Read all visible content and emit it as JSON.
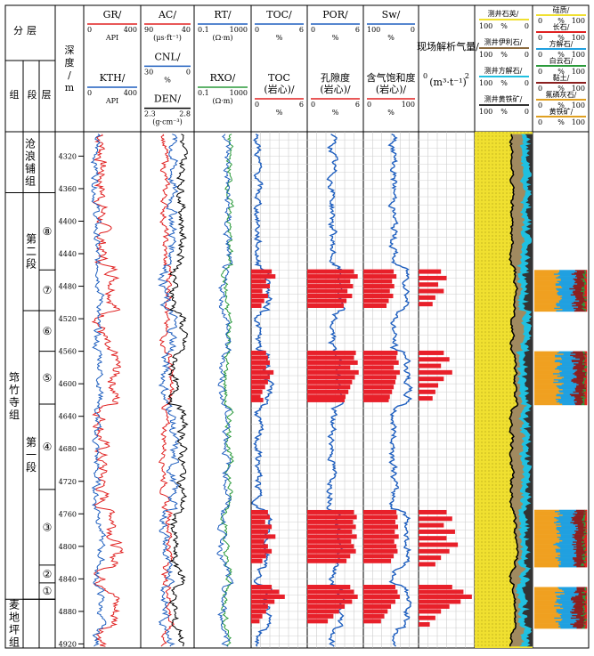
{
  "header": {
    "strat_title": "分层",
    "group_label": "组",
    "section_label": "段",
    "layer_label": "层",
    "depth_title": "深度/m",
    "analysis_title": "现场解析气量/",
    "analysis_unit": "(m³·t⁻¹)",
    "analysis_scale": [
      "0",
      "2"
    ]
  },
  "tracks": [
    {
      "id": "gr",
      "curves": [
        {
          "label": "GR/",
          "unit": "API",
          "min": "0",
          "max": "400",
          "color": "#e02020"
        },
        {
          "label": "KTH/",
          "unit": "API",
          "min": "0",
          "max": "400",
          "color": "#1f5fbf"
        }
      ]
    },
    {
      "id": "ac",
      "curves": [
        {
          "label": "AC/",
          "unit": "(μs·ft⁻¹)",
          "min": "90",
          "max": "40",
          "color": "#e02020"
        },
        {
          "label": "CNL/",
          "unit": "%",
          "min": "30",
          "max": "0",
          "color": "#1f5fbf"
        },
        {
          "label": "DEN/",
          "unit": "(g·cm⁻³)",
          "min": "2.3",
          "max": "2.8",
          "color": "#000000"
        }
      ]
    },
    {
      "id": "rt",
      "curves": [
        {
          "label": "RT/",
          "unit": "(Ω·m)",
          "min": "0.1",
          "max": "1000",
          "color": "#1f5fbf"
        },
        {
          "label": "RXO/",
          "unit": "(Ω·m)",
          "min": "0.1",
          "max": "1000",
          "color": "#2a9a3a"
        }
      ]
    },
    {
      "id": "toc",
      "curves": [
        {
          "label": "TOC/",
          "unit": "%",
          "min": "0",
          "max": "6",
          "color": "#1f5fbf"
        },
        {
          "label": "TOC (岩心)/",
          "unit": "%",
          "min": "0",
          "max": "6",
          "color": "#e02020"
        }
      ]
    },
    {
      "id": "por",
      "curves": [
        {
          "label": "POR/",
          "unit": "%",
          "min": "0",
          "max": "6",
          "color": "#1f5fbf"
        },
        {
          "label": "孔隙度 (岩心)/",
          "unit": "%",
          "min": "0",
          "max": "6",
          "color": "#e02020"
        }
      ]
    },
    {
      "id": "sw",
      "curves": [
        {
          "label": "Sw/",
          "unit": "%",
          "min": "100",
          "max": "0",
          "color": "#1f5fbf"
        },
        {
          "label": "含气饱和度 (岩心)/",
          "unit": "%",
          "min": "0",
          "max": "100",
          "color": "#e02020"
        }
      ]
    }
  ],
  "mineral_legend": [
    {
      "label": "测井石英/",
      "min": "100",
      "max": "0",
      "unit": "%",
      "color": "#f0e030"
    },
    {
      "label": "测井伊利石/",
      "min": "100",
      "max": "0",
      "unit": "%",
      "color": "#8b6b40"
    },
    {
      "label": "测井方解石/",
      "min": "100",
      "max": "0",
      "unit": "%",
      "color": "#20c0e0"
    },
    {
      "label": "测井黄铁矿/",
      "min": "100",
      "max": "0",
      "unit": "%",
      "color": "#333333"
    }
  ],
  "core_legend": [
    {
      "label": "硅质/",
      "unit": "%",
      "color": "#f0e030"
    },
    {
      "label": "长石/",
      "unit": "%",
      "color": "#e02020"
    },
    {
      "label": "方解石/",
      "unit": "%",
      "color": "#20a0e0"
    },
    {
      "label": "白云石/",
      "unit": "%",
      "color": "#2a9a3a"
    },
    {
      "label": "黏土/",
      "unit": "%",
      "color": "#8b2020"
    },
    {
      "label": "氟磷灰石/",
      "unit": "%",
      "color": "#e0a020"
    },
    {
      "label": "黄铁矿/",
      "unit": "%",
      "color": "#e0a020"
    }
  ],
  "core_legend_scale": [
    "0",
    "100"
  ],
  "formations": [
    {
      "name": "沧浪铺组",
      "top": 4290,
      "bottom": 4365
    },
    {
      "name": "筇竹寺组",
      "top": 4365,
      "bottom": 4865
    },
    {
      "name": "麦地坪组",
      "top": 4865,
      "bottom": 4925
    }
  ],
  "sections": [
    {
      "name": "第二段",
      "top": 4365,
      "bottom": 4510
    },
    {
      "name": "第一段",
      "top": 4510,
      "bottom": 4865
    }
  ],
  "layers": [
    {
      "name": "⑧",
      "top": 4365,
      "bottom": 4460
    },
    {
      "name": "⑦",
      "top": 4460,
      "bottom": 4510
    },
    {
      "name": "⑥",
      "top": 4510,
      "bottom": 4560
    },
    {
      "name": "⑤",
      "top": 4560,
      "bottom": 4625
    },
    {
      "name": "④",
      "top": 4625,
      "bottom": 4730
    },
    {
      "name": "③",
      "top": 4730,
      "bottom": 4823
    },
    {
      "name": "②",
      "top": 4823,
      "bottom": 4845
    },
    {
      "name": "①",
      "top": 4845,
      "bottom": 4865
    }
  ],
  "depth_ticks": [
    4320,
    4360,
    4400,
    4440,
    4480,
    4520,
    4560,
    4600,
    4640,
    4680,
    4720,
    4760,
    4800,
    4840,
    4880,
    4920
  ],
  "chart_data": {
    "type": "well-log",
    "depth_range": [
      4290,
      4925
    ],
    "depth_unit": "m",
    "grid": true,
    "shale_intervals": [
      {
        "top": 4455,
        "bottom": 4510
      },
      {
        "top": 4560,
        "bottom": 4625
      },
      {
        "top": 4755,
        "bottom": 4825
      },
      {
        "top": 4847,
        "bottom": 4900
      }
    ],
    "core_columns": [
      {
        "top": 4460,
        "bottom": 4510
      },
      {
        "top": 4560,
        "bottom": 4625
      },
      {
        "top": 4755,
        "bottom": 4825
      },
      {
        "top": 4850,
        "bottom": 4900
      }
    ],
    "core_points": {
      "toc": [
        [
          4462,
          2.2
        ],
        [
          4468,
          2.6
        ],
        [
          4474,
          1.6
        ],
        [
          4480,
          2.0
        ],
        [
          4486,
          1.2
        ],
        [
          4492,
          1.8
        ],
        [
          4498,
          1.4
        ],
        [
          4504,
          1.1
        ],
        [
          4562,
          1.6
        ],
        [
          4568,
          1.8
        ],
        [
          4574,
          2.0
        ],
        [
          4580,
          1.6
        ],
        [
          4586,
          2.4
        ],
        [
          4592,
          2.0
        ],
        [
          4598,
          1.8
        ],
        [
          4604,
          1.5
        ],
        [
          4610,
          1.2
        ],
        [
          4616,
          1.0
        ],
        [
          4620,
          1.3
        ],
        [
          4758,
          1.8
        ],
        [
          4764,
          2.0
        ],
        [
          4770,
          1.5
        ],
        [
          4776,
          2.2
        ],
        [
          4782,
          1.8
        ],
        [
          4788,
          2.6
        ],
        [
          4794,
          1.4
        ],
        [
          4800,
          1.8
        ],
        [
          4806,
          2.2
        ],
        [
          4812,
          1.6
        ],
        [
          4818,
          1.2
        ],
        [
          4850,
          2.2
        ],
        [
          4856,
          3.0
        ],
        [
          4862,
          3.6
        ],
        [
          4868,
          2.5
        ],
        [
          4874,
          1.8
        ],
        [
          4880,
          1.6
        ],
        [
          4886,
          1.2
        ],
        [
          4892,
          0.9
        ]
      ],
      "por": [
        [
          4462,
          5.0
        ],
        [
          4468,
          5.4
        ],
        [
          4474,
          4.6
        ],
        [
          4480,
          4.9
        ],
        [
          4486,
          4.3
        ],
        [
          4492,
          4.8
        ],
        [
          4498,
          4.2
        ],
        [
          4504,
          3.9
        ],
        [
          4562,
          5.2
        ],
        [
          4568,
          5.0
        ],
        [
          4574,
          5.4
        ],
        [
          4580,
          4.6
        ],
        [
          4586,
          5.5
        ],
        [
          4592,
          5.1
        ],
        [
          4598,
          4.8
        ],
        [
          4604,
          4.6
        ],
        [
          4610,
          4.4
        ],
        [
          4616,
          4.1
        ],
        [
          4620,
          4.0
        ],
        [
          4758,
          5.0
        ],
        [
          4764,
          5.3
        ],
        [
          4770,
          4.9
        ],
        [
          4776,
          5.2
        ],
        [
          4782,
          4.8
        ],
        [
          4788,
          5.3
        ],
        [
          4794,
          4.7
        ],
        [
          4800,
          5.0
        ],
        [
          4806,
          5.2
        ],
        [
          4812,
          4.6
        ],
        [
          4818,
          4.2
        ],
        [
          4850,
          4.6
        ],
        [
          4856,
          5.0
        ],
        [
          4862,
          5.4
        ],
        [
          4868,
          4.8
        ],
        [
          4874,
          4.0
        ],
        [
          4880,
          3.4
        ],
        [
          4886,
          2.8
        ],
        [
          4892,
          2.2
        ]
      ],
      "sw": [
        [
          4462,
          55
        ],
        [
          4468,
          60
        ],
        [
          4474,
          52
        ],
        [
          4480,
          56
        ],
        [
          4486,
          48
        ],
        [
          4492,
          54
        ],
        [
          4498,
          46
        ],
        [
          4504,
          42
        ],
        [
          4562,
          62
        ],
        [
          4568,
          60
        ],
        [
          4574,
          64
        ],
        [
          4580,
          55
        ],
        [
          4586,
          66
        ],
        [
          4592,
          60
        ],
        [
          4598,
          58
        ],
        [
          4604,
          55
        ],
        [
          4610,
          52
        ],
        [
          4616,
          48
        ],
        [
          4620,
          46
        ],
        [
          4758,
          60
        ],
        [
          4764,
          62
        ],
        [
          4770,
          58
        ],
        [
          4776,
          63
        ],
        [
          4782,
          57
        ],
        [
          4788,
          64
        ],
        [
          4794,
          56
        ],
        [
          4800,
          60
        ],
        [
          4806,
          62
        ],
        [
          4812,
          55
        ],
        [
          4818,
          50
        ],
        [
          4850,
          58
        ],
        [
          4856,
          62
        ],
        [
          4862,
          66
        ],
        [
          4868,
          58
        ],
        [
          4874,
          50
        ],
        [
          4880,
          44
        ],
        [
          4886,
          38
        ],
        [
          4892,
          32
        ]
      ],
      "gas": [
        [
          4462,
          0.8
        ],
        [
          4470,
          1.0
        ],
        [
          4478,
          0.7
        ],
        [
          4486,
          0.9
        ],
        [
          4494,
          0.6
        ],
        [
          4502,
          0.5
        ],
        [
          4562,
          0.9
        ],
        [
          4570,
          1.1
        ],
        [
          4578,
          0.8
        ],
        [
          4586,
          1.2
        ],
        [
          4594,
          0.9
        ],
        [
          4602,
          0.7
        ],
        [
          4610,
          0.6
        ],
        [
          4618,
          0.5
        ],
        [
          4758,
          1.0
        ],
        [
          4766,
          1.2
        ],
        [
          4774,
          0.9
        ],
        [
          4782,
          1.3
        ],
        [
          4790,
          1.0
        ],
        [
          4798,
          1.4
        ],
        [
          4806,
          1.1
        ],
        [
          4814,
          0.8
        ],
        [
          4822,
          0.6
        ],
        [
          4850,
          1.2
        ],
        [
          4856,
          1.6
        ],
        [
          4862,
          1.9
        ],
        [
          4868,
          1.5
        ],
        [
          4874,
          1.1
        ],
        [
          4880,
          0.8
        ],
        [
          4888,
          0.6
        ],
        [
          4896,
          0.4
        ]
      ]
    }
  }
}
